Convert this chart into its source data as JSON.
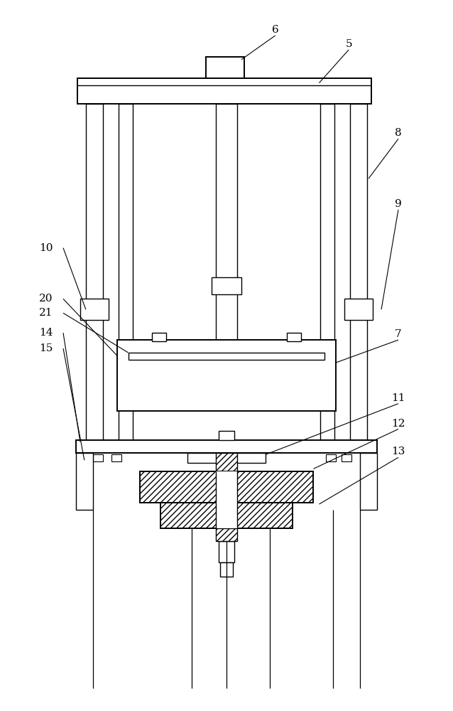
{
  "fig_width": 6.38,
  "fig_height": 10.0,
  "bg_color": "#ffffff",
  "lw": 1.0,
  "lw_thick": 1.4
}
